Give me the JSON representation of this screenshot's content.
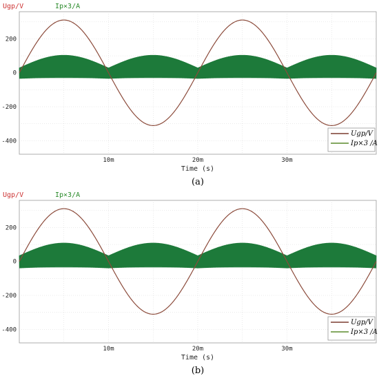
{
  "chart_data": [
    {
      "type": "line",
      "caption": "(a)",
      "top_labels": [
        "Ugp/V",
        "Ip×3/A"
      ],
      "xlabel": "Time (s)",
      "x_ticks": [
        "10m",
        "20m",
        "30m"
      ],
      "y_ticks": [
        "200",
        "0",
        "-200",
        "-400"
      ],
      "xlim": [
        0,
        0.04
      ],
      "ylim": [
        -480,
        360
      ],
      "grid": true,
      "legend_position": "bottom-right",
      "legend": [
        {
          "text": "Ugp/V",
          "color": "#7a3b2e"
        },
        {
          "text": "Ip×3 /A",
          "color": "#5a8a2a"
        }
      ],
      "series": [
        {
          "name": "Ugp/V",
          "color": "#8b4a3a",
          "kind": "sine",
          "amplitude": 311,
          "frequency_hz": 50
        },
        {
          "name": "Ip×3/A",
          "color": "#1e7a3a",
          "kind": "rectified_sine_envelope",
          "base": 30,
          "peak": 105,
          "lower": -35,
          "frequency_hz": 100
        }
      ]
    },
    {
      "type": "line",
      "caption": "(b)",
      "top_labels": [
        "Ugp/V",
        "Ip×3/A"
      ],
      "xlabel": "Time (s)",
      "x_ticks": [
        "10m",
        "20m",
        "30m"
      ],
      "y_ticks": [
        "200",
        "0",
        "-200",
        "-400"
      ],
      "xlim": [
        0,
        0.04
      ],
      "ylim": [
        -480,
        360
      ],
      "grid": true,
      "legend_position": "bottom-right",
      "legend": [
        {
          "text": "Ugp/V",
          "color": "#7a3b2e"
        },
        {
          "text": "Ip×3 /A",
          "color": "#5a8a2a"
        }
      ],
      "series": [
        {
          "name": "Ugp/V",
          "color": "#8b4a3a",
          "kind": "sine",
          "amplitude": 311,
          "frequency_hz": 50
        },
        {
          "name": "Ip×3/A",
          "color": "#1e7a3a",
          "kind": "rectified_sine_envelope",
          "base": 35,
          "peak": 110,
          "lower": -40,
          "frequency_hz": 100
        }
      ]
    }
  ]
}
